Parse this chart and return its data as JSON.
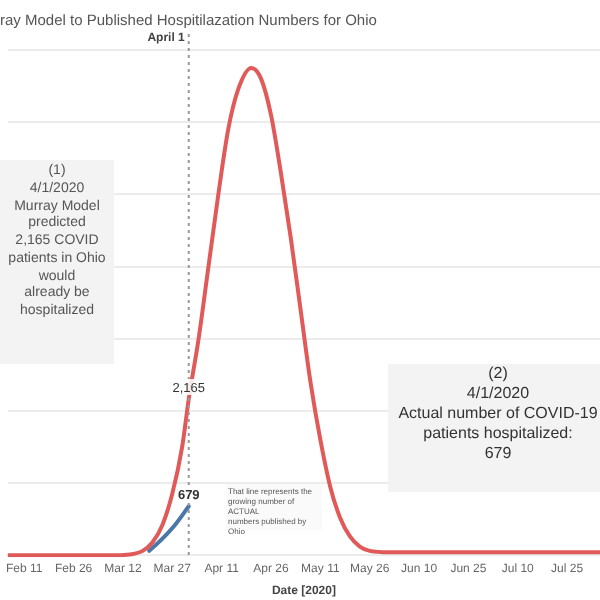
{
  "chart_data": {
    "type": "line",
    "title": "ray Model to Published Hospitilazation Numbers for Ohio",
    "xlabel": "Date [2020]",
    "xlim": [
      "2020-02-06",
      "2020-08-04"
    ],
    "xticks": [
      {
        "value": "2020-02-11",
        "label": "Feb 11"
      },
      {
        "value": "2020-02-26",
        "label": "Feb 26"
      },
      {
        "value": "2020-03-12",
        "label": "Mar 12"
      },
      {
        "value": "2020-03-27",
        "label": "Mar 27"
      },
      {
        "value": "2020-04-11",
        "label": "Apr 11"
      },
      {
        "value": "2020-04-26",
        "label": "Apr 26"
      },
      {
        "value": "2020-05-11",
        "label": "May 11"
      },
      {
        "value": "2020-05-26",
        "label": "May 26"
      },
      {
        "value": "2020-06-10",
        "label": "Jun 10"
      },
      {
        "value": "2020-06-25",
        "label": "Jun 25"
      },
      {
        "value": "2020-07-10",
        "label": "Jul 10"
      },
      {
        "value": "2020-07-25",
        "label": "Jul 25"
      }
    ],
    "tick_labels": "x",
    "grid": "y",
    "legend": false,
    "marker": "none",
    "line_style": "solid",
    "series": [
      {
        "color": "#e05a5a",
        "x": [
          "2020-02-06",
          "2020-03-10",
          "2020-03-14",
          "2020-03-18",
          "2020-03-21",
          "2020-03-24",
          "2020-03-27",
          "2020-03-30",
          "2020-04-01",
          "2020-04-04",
          "2020-04-07",
          "2020-04-10",
          "2020-04-13",
          "2020-04-16",
          "2020-04-20",
          "2020-04-23",
          "2020-04-26",
          "2020-04-29",
          "2020-05-02",
          "2020-05-05",
          "2020-05-08",
          "2020-05-11",
          "2020-05-14",
          "2020-05-17",
          "2020-05-20",
          "2020-05-23",
          "2020-05-26",
          "2020-06-01",
          "2020-08-04"
        ],
        "values": [
          0,
          0,
          10,
          60,
          180,
          420,
          850,
          1500,
          2165,
          3000,
          4000,
          5000,
          5900,
          6450,
          6750,
          6600,
          6100,
          5300,
          4400,
          3400,
          2400,
          1600,
          950,
          520,
          260,
          120,
          60,
          40,
          40
        ],
        "value_labels": [
          null,
          null,
          null,
          null,
          null,
          null,
          null,
          null,
          "2,165",
          null,
          null,
          null,
          null,
          null,
          null,
          null,
          null,
          null,
          null,
          null,
          null,
          null,
          null,
          null,
          null,
          null,
          null,
          null,
          null
        ]
      },
      {
        "color": "#4a76a8",
        "x": [
          "2020-03-20",
          "2020-03-24",
          "2020-03-28",
          "2020-04-01"
        ],
        "values": [
          60,
          230,
          430,
          679
        ],
        "value_labels": [
          null,
          null,
          null,
          "679"
        ]
      }
    ],
    "ref_lines": [
      {
        "axis": "x",
        "value": "2020-04-01",
        "label": "April 1",
        "color": "#999999",
        "line_style": "dotted"
      }
    ],
    "annotations": [
      "(1)\n4/1/2020\nMurray Model\npredicted\n2,165 COVID\npatients in Ohio\nwould\nalready be\nhospitalized",
      "(2)\n4/1/2020\nActual number of COVID-19\npatients hospitalized:\n679",
      "That line represents the\ngrowing number of ACTUAL\nnumbers published by\nOhio"
    ]
  }
}
